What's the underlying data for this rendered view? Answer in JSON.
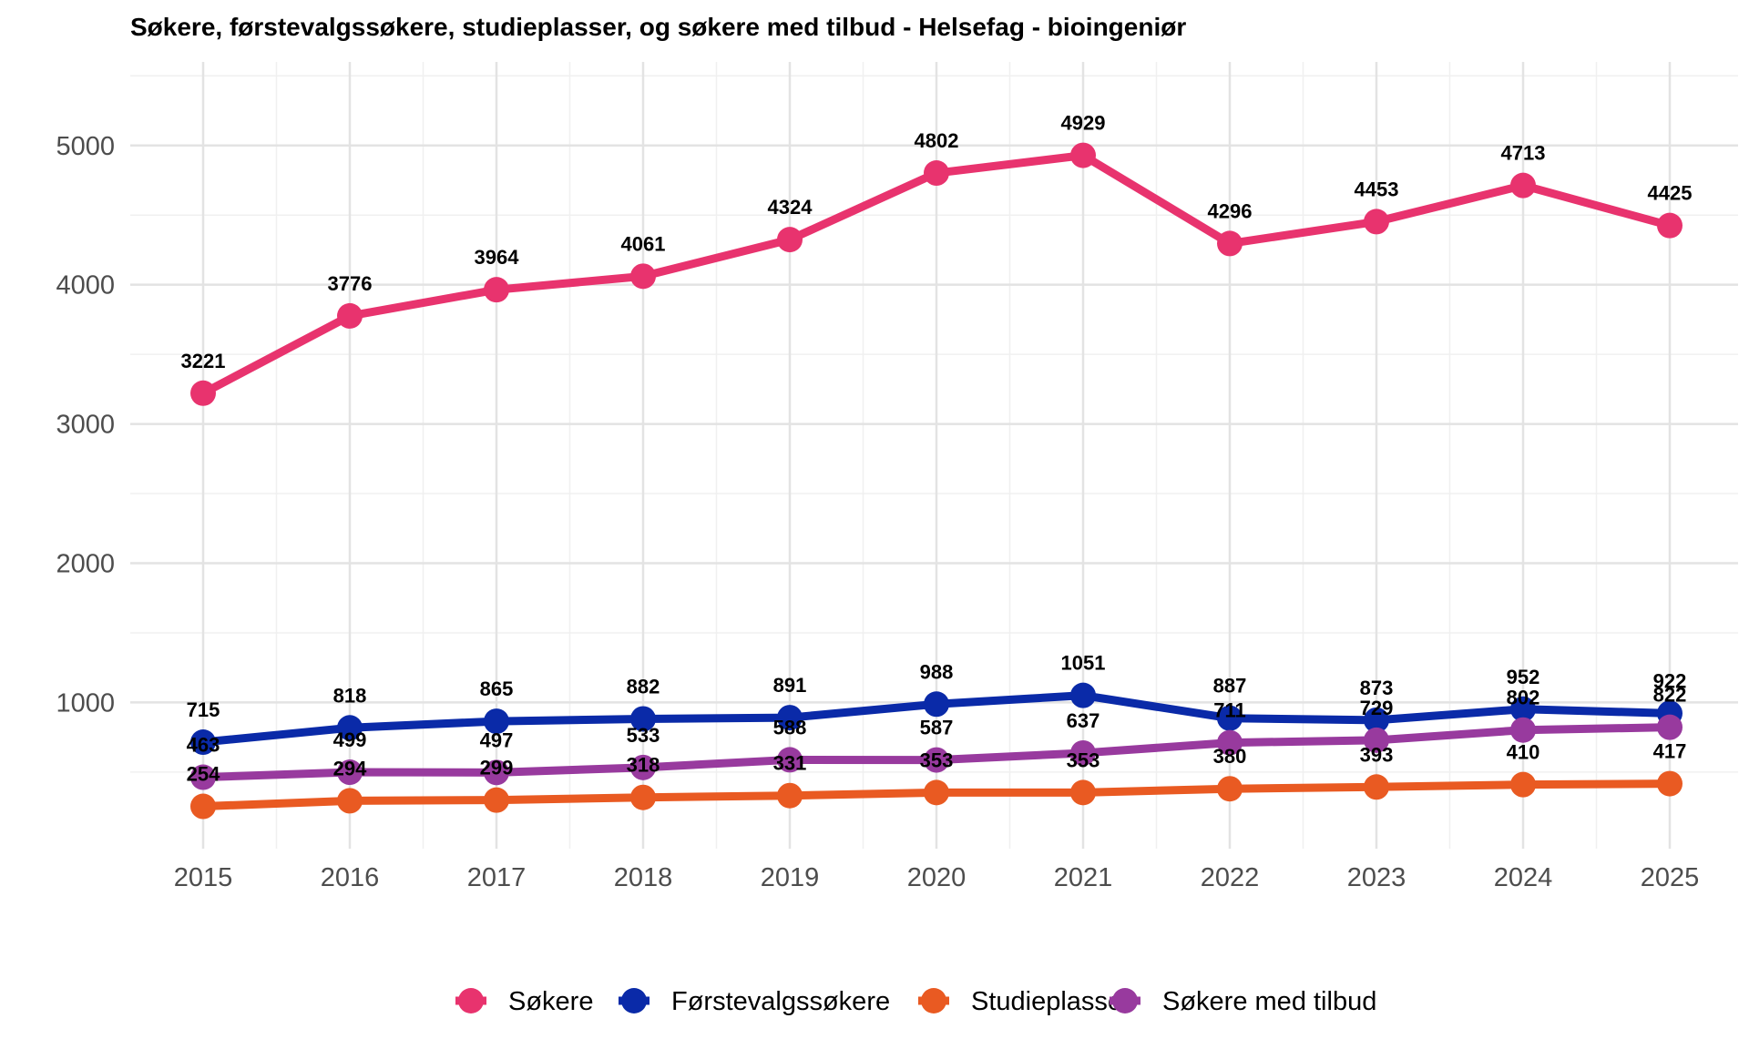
{
  "chart_data": {
    "type": "line",
    "title": "Søkere, førstevalgssøkere, studieplasser, og søkere med tilbud - Helsefag - bioingeniør",
    "xlabel": "",
    "ylabel": "",
    "categories": [
      "2015",
      "2016",
      "2017",
      "2018",
      "2019",
      "2020",
      "2021",
      "2022",
      "2023",
      "2024",
      "2025"
    ],
    "y_ticks": [
      1000,
      2000,
      3000,
      4000,
      5000
    ],
    "ylim": [
      -50,
      5600
    ],
    "grid": true,
    "legend_position": "bottom",
    "series": [
      {
        "name": "Søkere",
        "color": "#E8336E",
        "values": [
          3221,
          3776,
          3964,
          4061,
          4324,
          4802,
          4929,
          4296,
          4453,
          4713,
          4425
        ]
      },
      {
        "name": "Førstevalgssøkere",
        "color": "#0A2AA8",
        "values": [
          715,
          818,
          865,
          882,
          891,
          988,
          1051,
          887,
          873,
          952,
          922
        ]
      },
      {
        "name": "Studieplasser",
        "color": "#E95A22",
        "values": [
          254,
          294,
          299,
          318,
          331,
          353,
          353,
          380,
          393,
          410,
          417
        ]
      },
      {
        "name": "Søkere med tilbud",
        "color": "#983A9E",
        "values": [
          463,
          499,
          497,
          533,
          588,
          587,
          637,
          711,
          729,
          802,
          822
        ]
      }
    ]
  }
}
